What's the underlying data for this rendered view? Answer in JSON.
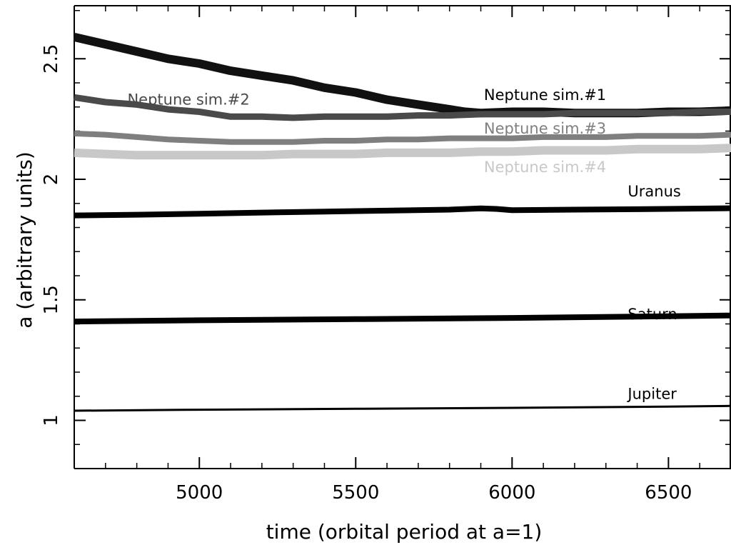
{
  "chart_data": {
    "type": "line",
    "title": "",
    "xlabel": "time (orbital period at a=1)",
    "ylabel": "a (arbitrary units)",
    "xlim": [
      4600,
      6700
    ],
    "ylim": [
      0.8,
      2.72
    ],
    "x_ticks": [
      5000,
      5500,
      6000,
      6500
    ],
    "y_ticks": [
      1,
      1.5,
      2,
      2.5
    ],
    "grid": false,
    "legend": "inline labels",
    "series": [
      {
        "name": "Neptune sim.#1",
        "color": "#111111",
        "x": [
          4600,
          4700,
          4800,
          4900,
          5000,
          5100,
          5200,
          5300,
          5400,
          5500,
          5600,
          5700,
          5800,
          5850,
          5900,
          6000,
          6100,
          6200,
          6300,
          6400,
          6500,
          6600,
          6700
        ],
        "y": [
          2.59,
          2.56,
          2.53,
          2.5,
          2.48,
          2.45,
          2.43,
          2.41,
          2.38,
          2.36,
          2.33,
          2.31,
          2.29,
          2.28,
          2.275,
          2.28,
          2.28,
          2.275,
          2.275,
          2.275,
          2.28,
          2.28,
          2.285
        ]
      },
      {
        "name": "Neptune sim.#2",
        "color": "#4a4a4a",
        "x": [
          4600,
          4700,
          4800,
          4900,
          5000,
          5100,
          5200,
          5300,
          5400,
          5500,
          5600,
          5700,
          5800,
          5900,
          6000,
          6100,
          6200,
          6300,
          6400,
          6500,
          6600,
          6700
        ],
        "y": [
          2.34,
          2.32,
          2.31,
          2.29,
          2.28,
          2.26,
          2.26,
          2.255,
          2.26,
          2.26,
          2.26,
          2.265,
          2.265,
          2.27,
          2.27,
          2.27,
          2.275,
          2.275,
          2.275,
          2.275,
          2.28,
          2.28
        ]
      },
      {
        "name": "Neptune sim.#3",
        "color": "#7f7f7f",
        "x": [
          4600,
          4700,
          4800,
          4900,
          5000,
          5100,
          5200,
          5300,
          5400,
          5500,
          5600,
          5700,
          5800,
          5900,
          6000,
          6100,
          6200,
          6300,
          6400,
          6500,
          6600,
          6700
        ],
        "y": [
          2.19,
          2.185,
          2.175,
          2.165,
          2.16,
          2.155,
          2.155,
          2.155,
          2.16,
          2.16,
          2.165,
          2.165,
          2.17,
          2.17,
          2.17,
          2.175,
          2.175,
          2.175,
          2.18,
          2.18,
          2.18,
          2.185
        ]
      },
      {
        "name": "Neptune sim.#4",
        "color": "#c8c8c8",
        "x": [
          4600,
          4700,
          4800,
          4900,
          5000,
          5100,
          5200,
          5300,
          5400,
          5500,
          5600,
          5700,
          5800,
          5900,
          6000,
          6100,
          6200,
          6300,
          6400,
          6500,
          6600,
          6700
        ],
        "y": [
          2.11,
          2.105,
          2.1,
          2.1,
          2.1,
          2.1,
          2.1,
          2.105,
          2.105,
          2.105,
          2.11,
          2.11,
          2.11,
          2.115,
          2.115,
          2.12,
          2.12,
          2.12,
          2.125,
          2.125,
          2.125,
          2.13
        ]
      },
      {
        "name": "Uranus",
        "color": "#000000",
        "x": [
          4600,
          4800,
          5000,
          5200,
          5400,
          5600,
          5800,
          5900,
          5950,
          6000,
          6200,
          6400,
          6700
        ],
        "y": [
          1.85,
          1.853,
          1.857,
          1.862,
          1.866,
          1.87,
          1.874,
          1.879,
          1.877,
          1.872,
          1.874,
          1.876,
          1.88
        ]
      },
      {
        "name": "Saturn",
        "color": "#000000",
        "x": [
          4600,
          5000,
          5500,
          6000,
          6500,
          6700
        ],
        "y": [
          1.41,
          1.415,
          1.42,
          1.425,
          1.432,
          1.435
        ]
      },
      {
        "name": "Jupiter",
        "color": "#000000",
        "x": [
          4600,
          5000,
          5500,
          6000,
          6500,
          6700
        ],
        "y": [
          1.04,
          1.044,
          1.048,
          1.052,
          1.057,
          1.06
        ]
      }
    ]
  }
}
